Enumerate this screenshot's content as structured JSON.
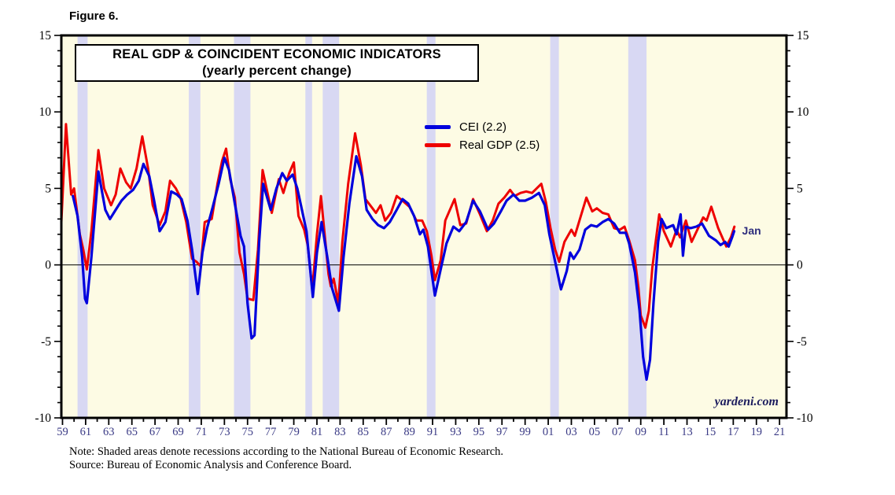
{
  "figure_label": "Figure 6.",
  "note": "Note: Shaded areas denote recessions according to the National Bureau of Economic Research.",
  "source": "Source: Bureau of Economic Analysis and Conference Board.",
  "watermark": "yardeni.com",
  "last_point_label": "Jan",
  "legend": [
    {
      "label": "CEI (2.2)",
      "color": "#0000dd"
    },
    {
      "label": "Real GDP (2.5)",
      "color": "#ee0000"
    }
  ],
  "colors": {
    "plot_bg": "#fdfbe4",
    "recession_band": "#d8d8f3",
    "frame": "#000000",
    "zero_line": "#000000",
    "y_tick_label": "#000000",
    "x_tick_label": "#3a3a85",
    "cei_line": "#0000dd",
    "gdp_line": "#ee0000"
  },
  "chart_data": {
    "type": "line",
    "title": "REAL GDP & COINCIDENT ECONOMIC INDICATORS",
    "subtitle": "(yearly percent change)",
    "xlabel": "",
    "ylabel": "",
    "xlim": [
      1958.9,
      2021.6
    ],
    "ylim": [
      -10,
      15
    ],
    "grid": false,
    "legend_position": "upper middle",
    "y_major_ticks": [
      -10,
      -5,
      0,
      5,
      10,
      15
    ],
    "y_tick_labels": [
      "-10",
      "-5",
      "0",
      "5",
      "10",
      "15"
    ],
    "y_minor_step": 1,
    "x_year_range": [
      1959,
      2021
    ],
    "x_label_start": 1959,
    "x_label_step": 2,
    "x_tick_labels": [
      "59",
      "61",
      "63",
      "65",
      "67",
      "69",
      "71",
      "73",
      "75",
      "77",
      "79",
      "81",
      "83",
      "85",
      "87",
      "89",
      "91",
      "93",
      "95",
      "97",
      "99",
      "01",
      "03",
      "05",
      "07",
      "09",
      "11",
      "13",
      "15",
      "17",
      "19",
      "21"
    ],
    "recessions": [
      [
        1960.3,
        1961.17
      ],
      [
        1969.92,
        1970.92
      ],
      [
        1973.83,
        1975.25
      ],
      [
        1980.0,
        1980.58
      ],
      [
        1981.5,
        1982.92
      ],
      [
        1990.5,
        1991.25
      ],
      [
        2001.17,
        2001.92
      ],
      [
        2007.92,
        2009.5
      ]
    ],
    "series": [
      {
        "name": "Real GDP (2.5)",
        "color": "#ee0000",
        "width": 3,
        "points": [
          [
            1958.9,
            2.8
          ],
          [
            1959.3,
            9.2
          ],
          [
            1959.75,
            4.6
          ],
          [
            1960.0,
            5.0
          ],
          [
            1960.5,
            2.0
          ],
          [
            1960.8,
            1.0
          ],
          [
            1961.1,
            -0.3
          ],
          [
            1961.5,
            2.2
          ],
          [
            1962.1,
            7.5
          ],
          [
            1962.6,
            5.0
          ],
          [
            1963.2,
            3.9
          ],
          [
            1963.6,
            4.6
          ],
          [
            1964.0,
            6.3
          ],
          [
            1964.5,
            5.4
          ],
          [
            1964.9,
            5.0
          ],
          [
            1965.4,
            6.3
          ],
          [
            1965.9,
            8.4
          ],
          [
            1966.4,
            6.3
          ],
          [
            1966.8,
            3.9
          ],
          [
            1967.4,
            2.6
          ],
          [
            1967.9,
            3.5
          ],
          [
            1968.3,
            5.5
          ],
          [
            1968.8,
            5.0
          ],
          [
            1969.2,
            4.4
          ],
          [
            1969.7,
            2.8
          ],
          [
            1970.2,
            0.4
          ],
          [
            1970.6,
            0.2
          ],
          [
            1970.95,
            -0.1
          ],
          [
            1971.3,
            2.8
          ],
          [
            1971.9,
            3.0
          ],
          [
            1972.4,
            5.3
          ],
          [
            1972.8,
            6.8
          ],
          [
            1973.15,
            7.6
          ],
          [
            1973.5,
            5.6
          ],
          [
            1973.9,
            4.4
          ],
          [
            1974.3,
            0.8
          ],
          [
            1974.7,
            -0.6
          ],
          [
            1975.0,
            -2.2
          ],
          [
            1975.5,
            -2.3
          ],
          [
            1975.9,
            1.0
          ],
          [
            1976.3,
            6.2
          ],
          [
            1977.1,
            3.4
          ],
          [
            1977.7,
            5.6
          ],
          [
            1978.1,
            4.7
          ],
          [
            1978.6,
            6.0
          ],
          [
            1979.0,
            6.7
          ],
          [
            1979.4,
            3.2
          ],
          [
            1979.9,
            2.3
          ],
          [
            1980.2,
            1.3
          ],
          [
            1980.6,
            -1.6
          ],
          [
            1981.0,
            2.0
          ],
          [
            1981.35,
            4.5
          ],
          [
            1982.0,
            -0.6
          ],
          [
            1982.2,
            -1.4
          ],
          [
            1982.45,
            -0.9
          ],
          [
            1982.85,
            -2.5
          ],
          [
            1983.2,
            1.5
          ],
          [
            1983.7,
            5.3
          ],
          [
            1984.3,
            8.6
          ],
          [
            1984.8,
            6.5
          ],
          [
            1985.2,
            4.3
          ],
          [
            1985.7,
            3.8
          ],
          [
            1986.1,
            3.4
          ],
          [
            1986.5,
            3.9
          ],
          [
            1986.9,
            2.9
          ],
          [
            1987.4,
            3.4
          ],
          [
            1987.9,
            4.5
          ],
          [
            1988.4,
            4.2
          ],
          [
            1989.0,
            3.8
          ],
          [
            1989.6,
            2.9
          ],
          [
            1990.1,
            2.9
          ],
          [
            1990.5,
            2.2
          ],
          [
            1990.9,
            0.6
          ],
          [
            1991.2,
            -1.0
          ],
          [
            1991.7,
            0.3
          ],
          [
            1992.1,
            2.9
          ],
          [
            1992.9,
            4.3
          ],
          [
            1993.4,
            2.6
          ],
          [
            1993.9,
            2.7
          ],
          [
            1994.5,
            4.3
          ],
          [
            1995.1,
            3.3
          ],
          [
            1995.7,
            2.2
          ],
          [
            1996.2,
            2.9
          ],
          [
            1996.7,
            4.0
          ],
          [
            1997.2,
            4.4
          ],
          [
            1997.7,
            4.9
          ],
          [
            1998.1,
            4.5
          ],
          [
            1998.6,
            4.7
          ],
          [
            1999.1,
            4.8
          ],
          [
            1999.6,
            4.7
          ],
          [
            2000.4,
            5.3
          ],
          [
            2000.8,
            4.1
          ],
          [
            2001.2,
            2.4
          ],
          [
            2001.6,
            1.0
          ],
          [
            2001.95,
            0.2
          ],
          [
            2002.4,
            1.5
          ],
          [
            2003.0,
            2.3
          ],
          [
            2003.3,
            1.9
          ],
          [
            2004.3,
            4.4
          ],
          [
            2004.8,
            3.5
          ],
          [
            2005.2,
            3.7
          ],
          [
            2005.7,
            3.4
          ],
          [
            2006.2,
            3.3
          ],
          [
            2006.7,
            2.4
          ],
          [
            2007.2,
            2.3
          ],
          [
            2007.6,
            2.5
          ],
          [
            2008.0,
            1.6
          ],
          [
            2008.5,
            0.3
          ],
          [
            2008.8,
            -1.5
          ],
          [
            2009.0,
            -3.3
          ],
          [
            2009.4,
            -4.1
          ],
          [
            2009.7,
            -3.0
          ],
          [
            2010.0,
            -0.2
          ],
          [
            2010.6,
            3.3
          ],
          [
            2011.0,
            2.2
          ],
          [
            2011.6,
            1.2
          ],
          [
            2012.1,
            2.3
          ],
          [
            2012.4,
            1.8
          ],
          [
            2012.9,
            2.9
          ],
          [
            2013.4,
            1.5
          ],
          [
            2014.4,
            3.1
          ],
          [
            2014.7,
            2.9
          ],
          [
            2015.1,
            3.8
          ],
          [
            2015.7,
            2.4
          ],
          [
            2016.4,
            1.2
          ],
          [
            2016.8,
            1.8
          ],
          [
            2017.1,
            2.5
          ]
        ]
      },
      {
        "name": "CEI (2.2)",
        "color": "#0000dd",
        "width": 3.2,
        "points": [
          [
            1959.9,
            4.5
          ],
          [
            1960.3,
            3.2
          ],
          [
            1960.7,
            0.5
          ],
          [
            1960.95,
            -2.2
          ],
          [
            1961.1,
            -2.5
          ],
          [
            1961.5,
            0.5
          ],
          [
            1962.1,
            6.1
          ],
          [
            1962.7,
            3.6
          ],
          [
            1963.1,
            3.0
          ],
          [
            1963.6,
            3.6
          ],
          [
            1964.1,
            4.2
          ],
          [
            1964.6,
            4.6
          ],
          [
            1965.1,
            4.9
          ],
          [
            1965.6,
            5.5
          ],
          [
            1966.0,
            6.6
          ],
          [
            1966.5,
            5.8
          ],
          [
            1966.9,
            4.3
          ],
          [
            1967.4,
            2.2
          ],
          [
            1967.9,
            2.8
          ],
          [
            1968.4,
            4.8
          ],
          [
            1968.9,
            4.6
          ],
          [
            1969.3,
            4.3
          ],
          [
            1969.8,
            2.9
          ],
          [
            1970.2,
            1.0
          ],
          [
            1970.7,
            -1.9
          ],
          [
            1971.1,
            0.8
          ],
          [
            1971.5,
            2.4
          ],
          [
            1972.0,
            3.8
          ],
          [
            1972.5,
            5.3
          ],
          [
            1973.0,
            7.0
          ],
          [
            1973.4,
            6.2
          ],
          [
            1973.9,
            4.0
          ],
          [
            1974.4,
            1.9
          ],
          [
            1974.7,
            1.2
          ],
          [
            1975.0,
            -2.5
          ],
          [
            1975.35,
            -4.8
          ],
          [
            1975.6,
            -4.6
          ],
          [
            1976.0,
            1.5
          ],
          [
            1976.35,
            5.3
          ],
          [
            1977.0,
            3.6
          ],
          [
            1977.5,
            5.0
          ],
          [
            1978.0,
            6.0
          ],
          [
            1978.4,
            5.5
          ],
          [
            1978.9,
            5.9
          ],
          [
            1979.3,
            5.0
          ],
          [
            1979.7,
            3.6
          ],
          [
            1980.1,
            2.2
          ],
          [
            1980.65,
            -2.1
          ],
          [
            1981.0,
            0.8
          ],
          [
            1981.4,
            2.8
          ],
          [
            1981.9,
            0.5
          ],
          [
            1982.3,
            -1.5
          ],
          [
            1982.9,
            -3.0
          ],
          [
            1983.3,
            0.5
          ],
          [
            1983.8,
            4.0
          ],
          [
            1984.4,
            7.1
          ],
          [
            1984.9,
            5.8
          ],
          [
            1985.3,
            3.6
          ],
          [
            1985.8,
            3.0
          ],
          [
            1986.3,
            2.6
          ],
          [
            1986.8,
            2.4
          ],
          [
            1987.3,
            2.8
          ],
          [
            1987.9,
            3.6
          ],
          [
            1988.4,
            4.3
          ],
          [
            1988.9,
            4.0
          ],
          [
            1989.4,
            3.2
          ],
          [
            1989.9,
            2.0
          ],
          [
            1990.2,
            2.3
          ],
          [
            1990.6,
            1.2
          ],
          [
            1991.2,
            -2.0
          ],
          [
            1991.7,
            -0.3
          ],
          [
            1992.2,
            1.4
          ],
          [
            1992.8,
            2.5
          ],
          [
            1993.3,
            2.2
          ],
          [
            1993.9,
            2.8
          ],
          [
            1994.5,
            4.2
          ],
          [
            1995.1,
            3.5
          ],
          [
            1995.8,
            2.3
          ],
          [
            1996.3,
            2.7
          ],
          [
            1996.9,
            3.5
          ],
          [
            1997.4,
            4.2
          ],
          [
            1998.0,
            4.6
          ],
          [
            1998.5,
            4.2
          ],
          [
            1999.0,
            4.2
          ],
          [
            1999.6,
            4.4
          ],
          [
            2000.2,
            4.7
          ],
          [
            2000.7,
            3.9
          ],
          [
            2001.1,
            2.0
          ],
          [
            2001.6,
            0.2
          ],
          [
            2002.1,
            -1.6
          ],
          [
            2002.6,
            -0.4
          ],
          [
            2002.9,
            0.8
          ],
          [
            2003.2,
            0.4
          ],
          [
            2003.7,
            1.0
          ],
          [
            2004.2,
            2.3
          ],
          [
            2004.7,
            2.6
          ],
          [
            2005.2,
            2.5
          ],
          [
            2005.7,
            2.8
          ],
          [
            2006.2,
            3.0
          ],
          [
            2006.7,
            2.7
          ],
          [
            2007.2,
            2.1
          ],
          [
            2007.7,
            2.1
          ],
          [
            2008.0,
            1.4
          ],
          [
            2008.5,
            -0.5
          ],
          [
            2008.9,
            -3.0
          ],
          [
            2009.2,
            -6.0
          ],
          [
            2009.5,
            -7.5
          ],
          [
            2009.8,
            -6.2
          ],
          [
            2010.1,
            -2.5
          ],
          [
            2010.5,
            1.5
          ],
          [
            2010.8,
            3.0
          ],
          [
            2011.2,
            2.4
          ],
          [
            2011.5,
            2.5
          ],
          [
            2011.8,
            2.6
          ],
          [
            2012.1,
            2.0
          ],
          [
            2012.45,
            3.3
          ],
          [
            2012.65,
            0.6
          ],
          [
            2012.9,
            2.5
          ],
          [
            2013.3,
            2.4
          ],
          [
            2013.8,
            2.5
          ],
          [
            2014.3,
            2.7
          ],
          [
            2014.9,
            1.9
          ],
          [
            2015.5,
            1.6
          ],
          [
            2015.9,
            1.3
          ],
          [
            2016.3,
            1.5
          ],
          [
            2016.6,
            1.2
          ],
          [
            2016.9,
            1.8
          ],
          [
            2017.08,
            2.2
          ]
        ]
      }
    ]
  }
}
